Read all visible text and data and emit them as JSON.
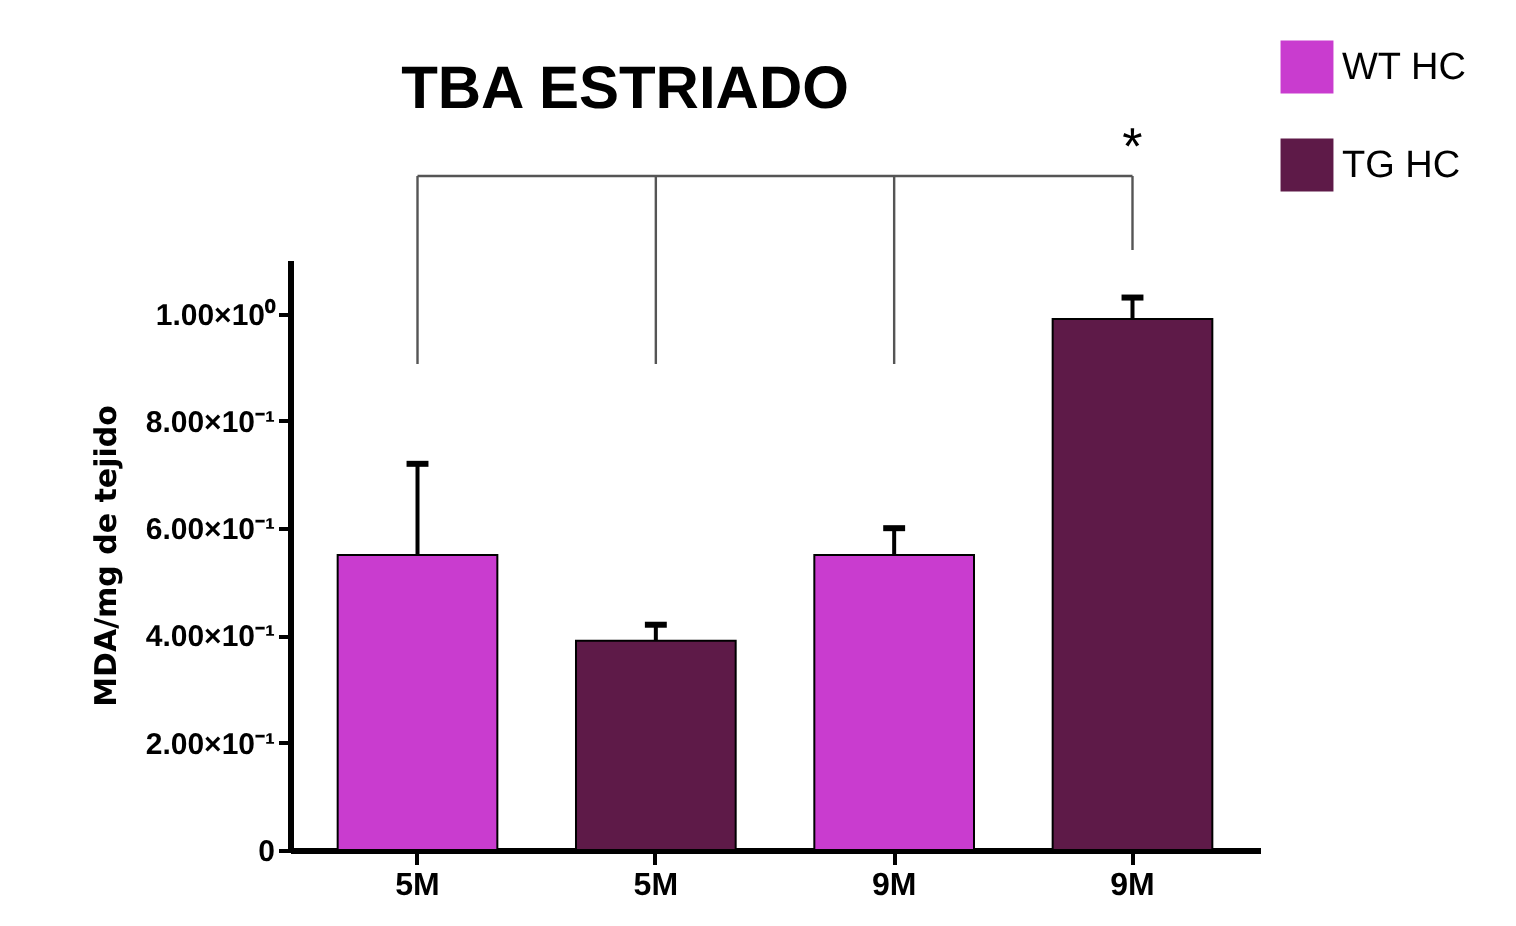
{
  "chart_data": {
    "type": "bar",
    "title": "TBA ESTRIADO",
    "ylabel": "MDA/mg de tejido",
    "categories": [
      "5M",
      "5M",
      "9M",
      "9M"
    ],
    "series": [
      {
        "name": "WT HC",
        "color": "#c93ccf",
        "values": [
          0.55,
          null,
          0.55,
          null
        ],
        "errors": [
          [
            0.55,
            0.72
          ],
          null,
          [
            0.55,
            0.6
          ],
          null
        ]
      },
      {
        "name": "TG HC",
        "color": "#5e1a48",
        "values": [
          null,
          0.39,
          null,
          0.99
        ],
        "errors": [
          null,
          [
            0.39,
            0.42
          ],
          null,
          [
            0.99,
            1.03
          ]
        ]
      }
    ],
    "ylim": [
      0,
      1.1
    ],
    "yticks": [
      0,
      {
        "value": 0.2,
        "label": "2.00×10⁻¹"
      },
      {
        "value": 0.4,
        "label": "4.00×10⁻¹"
      },
      {
        "value": 0.6,
        "label": "6.00×10⁻¹"
      },
      {
        "value": 0.8,
        "label": "8.00×10⁻¹"
      },
      {
        "value": 1.0,
        "label": "1.00×10⁰"
      }
    ],
    "annotations": [
      "*"
    ],
    "legend": "top right",
    "grid": false
  }
}
